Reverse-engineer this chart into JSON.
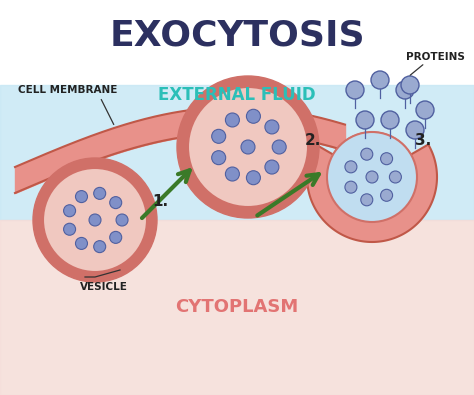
{
  "title": "EXOCYTOSIS",
  "title_color": "#2c3060",
  "title_fontsize": 26,
  "cell_membrane_label": "CELL MEMBRANE",
  "external_fluid_label": "EXTERNAL FLUID",
  "external_fluid_color": "#2bbfb8",
  "proteins_label": "PROTEINS",
  "vesicle_label": "VESICLE",
  "cytoplasm_label": "CYTOPLASM",
  "cytoplasm_color": "#e06868",
  "step1": "1.",
  "step2": "2.",
  "step3": "3.",
  "membrane_fill": "#e8918a",
  "membrane_edge": "#c05848",
  "vesicle_fill": "#f0c8c0",
  "vesicle_ring": "#d07068",
  "dot_fill": "#8090c8",
  "dot_edge": "#5060a0",
  "arrow_color": "#3a7a28",
  "protein_dot_fill": "#9aaad0",
  "protein_dot_edge": "#5060a0",
  "vesicle3_fill": "#c0ddf0",
  "step_color": "#222222",
  "label_color": "#222222",
  "bg_blue": "#c8e8f5",
  "bg_pink": "#f5ddd8"
}
